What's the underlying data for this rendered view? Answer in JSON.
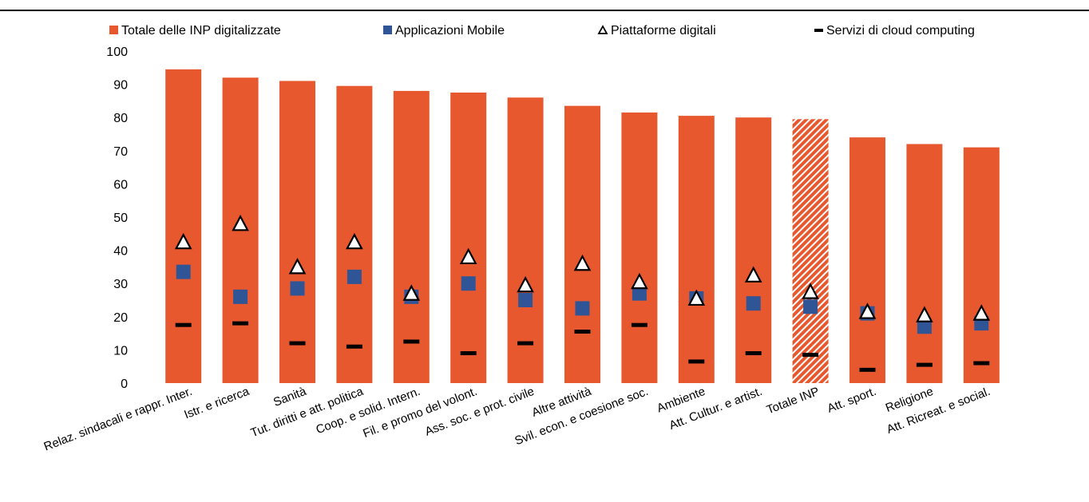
{
  "colors": {
    "bar": "#E8582F",
    "bar_highlight_stripe": "#ffffff",
    "mobile": "#2F5597",
    "platform_fill": "#ffffff",
    "platform_stroke": "#000000",
    "cloud": "#000000",
    "axis_text": "#000000"
  },
  "chart_data": {
    "type": "bar",
    "title": "",
    "xlabel": "",
    "ylabel": "",
    "ylim": [
      0,
      100
    ],
    "yticks": [
      0,
      10,
      20,
      30,
      40,
      50,
      60,
      70,
      80,
      90,
      100
    ],
    "grid": false,
    "legend_position": "top",
    "highlight_category": "Totale INP",
    "categories": [
      "Relaz. sindacali e rappr. Inter.",
      "Istr. e ricerca",
      "Sanità",
      "Tut. diritti e att. politica",
      "Coop. e solid. Intern.",
      "Fil. e promo del volont.",
      "Ass. soc. e prot. civile",
      "Altre attività",
      "Svil. econ. e coesione soc.",
      "Ambiente",
      "Att. Cultur. e artist.",
      "Totale INP",
      "Att. sport.",
      "Religione",
      "Att. Ricreat. e social."
    ],
    "series": [
      {
        "name": "Totale delle INP digitalizzate",
        "kind": "bar",
        "values": [
          94.5,
          92,
          91,
          89.5,
          88,
          87.5,
          86,
          83.5,
          81.5,
          80.5,
          80,
          79.5,
          74,
          72,
          71
        ]
      },
      {
        "name": "Applicazioni Mobile",
        "kind": "square",
        "values": [
          33.5,
          26,
          28.5,
          32,
          26,
          30,
          25,
          22.5,
          27,
          25.5,
          24,
          23,
          21,
          17,
          18
        ]
      },
      {
        "name": "Piattaforme digitali",
        "kind": "triangle",
        "values": [
          42.5,
          48,
          35,
          42.5,
          27,
          38,
          29.5,
          36,
          30.5,
          25.5,
          32.5,
          27.5,
          21.5,
          20.5,
          21
        ]
      },
      {
        "name": "Servizi di cloud computing",
        "kind": "dash",
        "values": [
          17.5,
          18,
          12,
          11,
          12.5,
          9,
          12,
          15.5,
          17.5,
          6.5,
          9,
          8.5,
          4,
          5.5,
          6
        ]
      }
    ]
  }
}
